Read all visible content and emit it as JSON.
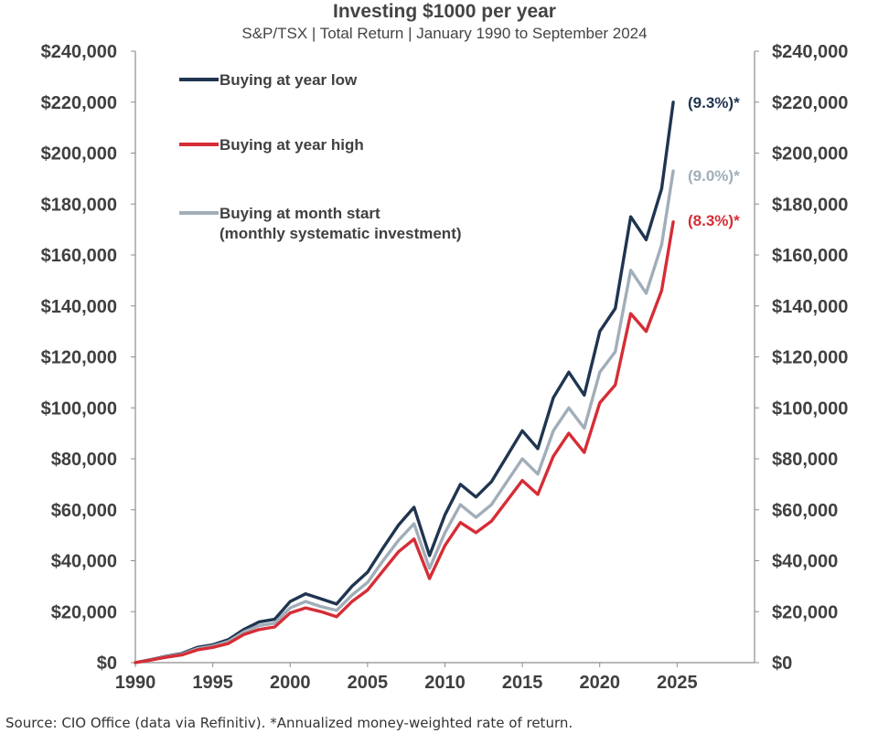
{
  "chart_data": {
    "type": "line",
    "title": "Investing $1000 per year",
    "subtitle": "S&P/TSX | Total Return | January 1990 to September 2024",
    "x": [
      1990,
      1991,
      1992,
      1993,
      1994,
      1995,
      1996,
      1997,
      1998,
      1999,
      2000,
      2001,
      2002,
      2003,
      2004,
      2005,
      2006,
      2007,
      2008,
      2009,
      2010,
      2011,
      2012,
      2013,
      2014,
      2015,
      2016,
      2017,
      2018,
      2019,
      2020,
      2021,
      2022,
      2023,
      2024,
      2024.75
    ],
    "x_ticks": [
      1990,
      1995,
      2000,
      2005,
      2010,
      2015,
      2020,
      2025
    ],
    "xlim": [
      1990,
      2030
    ],
    "ylim": [
      0,
      240000
    ],
    "y_ticks": [
      0,
      20000,
      40000,
      60000,
      80000,
      100000,
      120000,
      140000,
      160000,
      180000,
      200000,
      220000,
      240000
    ],
    "y_tick_labels": [
      "$0",
      "$20,000",
      "$40,000",
      "$60,000",
      "$80,000",
      "$100,000",
      "$120,000",
      "$140,000",
      "$160,000",
      "$180,000",
      "$200,000",
      "$220,000",
      "$240,000"
    ],
    "series": [
      {
        "name": "Buying at year low",
        "color": "#1f3550",
        "end_label": "(9.3%)*",
        "values": [
          0,
          1200,
          2500,
          3600,
          6000,
          7000,
          9000,
          13000,
          16000,
          17000,
          24000,
          27000,
          25000,
          23000,
          30000,
          35500,
          45000,
          54000,
          61000,
          42000,
          58000,
          70000,
          65000,
          71000,
          81000,
          91000,
          84000,
          104000,
          114000,
          105000,
          130000,
          139000,
          175000,
          166000,
          186000,
          220000
        ]
      },
      {
        "name": "Buying at month start",
        "name_line2": "(monthly systematic investment)",
        "color": "#a1aeb9",
        "end_label": "(9.0%)*",
        "values": [
          0,
          1100,
          2300,
          3300,
          5500,
          6500,
          8300,
          12000,
          14500,
          15500,
          21500,
          24000,
          22000,
          20500,
          26500,
          31500,
          40000,
          48000,
          54500,
          37000,
          51000,
          62000,
          57000,
          62000,
          71000,
          80000,
          74000,
          91000,
          100000,
          92000,
          114000,
          122000,
          154000,
          145000,
          164000,
          193000
        ]
      },
      {
        "name": "Buying at year high",
        "color": "#d62d36",
        "end_label": "(8.3%)*",
        "values": [
          0,
          1000,
          2100,
          3000,
          5000,
          6000,
          7500,
          11000,
          13000,
          14000,
          19500,
          21500,
          20000,
          18000,
          24000,
          28500,
          36000,
          43500,
          48500,
          33000,
          46000,
          55000,
          51000,
          55500,
          63500,
          71500,
          66000,
          81000,
          90000,
          82500,
          102000,
          109000,
          137000,
          130000,
          146000,
          173000
        ]
      }
    ]
  },
  "footer": {
    "source": "Source: CIO Office (data via Refinitiv). *Annualized money-weighted rate of return."
  }
}
